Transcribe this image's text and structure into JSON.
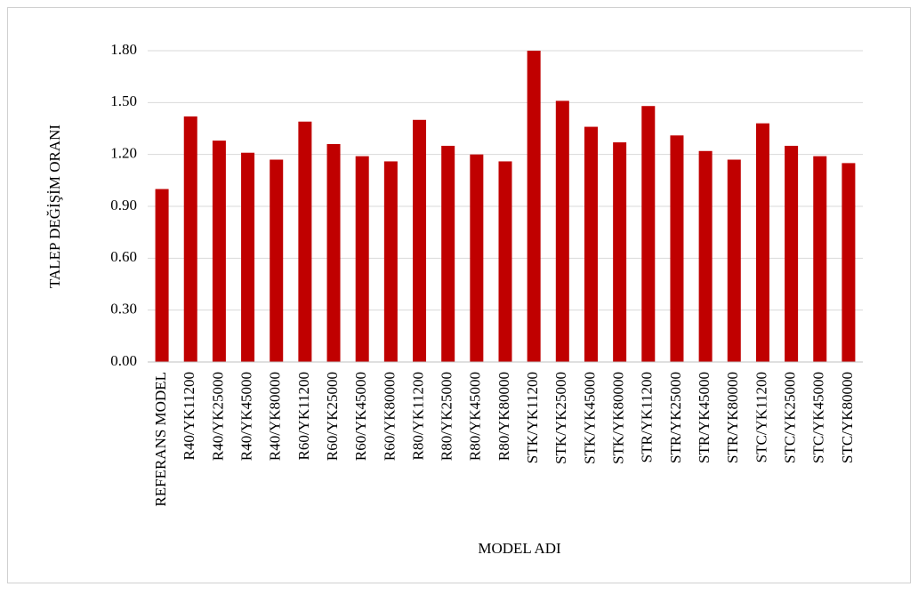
{
  "chart_data": {
    "type": "bar",
    "categories": [
      "REFERANS MODEL",
      "R40/YK11200",
      "R40/YK25000",
      "R40/YK45000",
      "R40/YK80000",
      "R60/YK11200",
      "R60/YK25000",
      "R60/YK45000",
      "R60/YK80000",
      "R80/YK11200",
      "R80/YK25000",
      "R80/YK45000",
      "R80/YK80000",
      "STK/YK11200",
      "STK/YK25000",
      "STK/YK45000",
      "STK/YK80000",
      "STR/YK11200",
      "STR/YK25000",
      "STR/YK45000",
      "STR/YK80000",
      "STC/YK11200",
      "STC/YK25000",
      "STC/YK45000",
      "STC/YK80000"
    ],
    "values": [
      1.0,
      1.42,
      1.28,
      1.21,
      1.17,
      1.39,
      1.26,
      1.19,
      1.16,
      1.4,
      1.25,
      1.2,
      1.16,
      1.8,
      1.51,
      1.36,
      1.27,
      1.48,
      1.31,
      1.22,
      1.17,
      1.38,
      1.25,
      1.19,
      1.15
    ],
    "color": "#c00000",
    "x_label": "MODEL ADI",
    "y_label": "TALEP DEĞİŞİM ORANI",
    "ylim": [
      0,
      1.8
    ],
    "yticks": [
      {
        "value": 0,
        "label": "0.00"
      },
      {
        "value": 0.3,
        "label": "0.30"
      },
      {
        "value": 0.6,
        "label": "0.60"
      },
      {
        "value": 0.9,
        "label": "0.90"
      },
      {
        "value": 1.2,
        "label": "1.20"
      },
      {
        "value": 1.5,
        "label": "1.50"
      },
      {
        "value": 1.8,
        "label": "1.80"
      }
    ],
    "grid": true
  }
}
